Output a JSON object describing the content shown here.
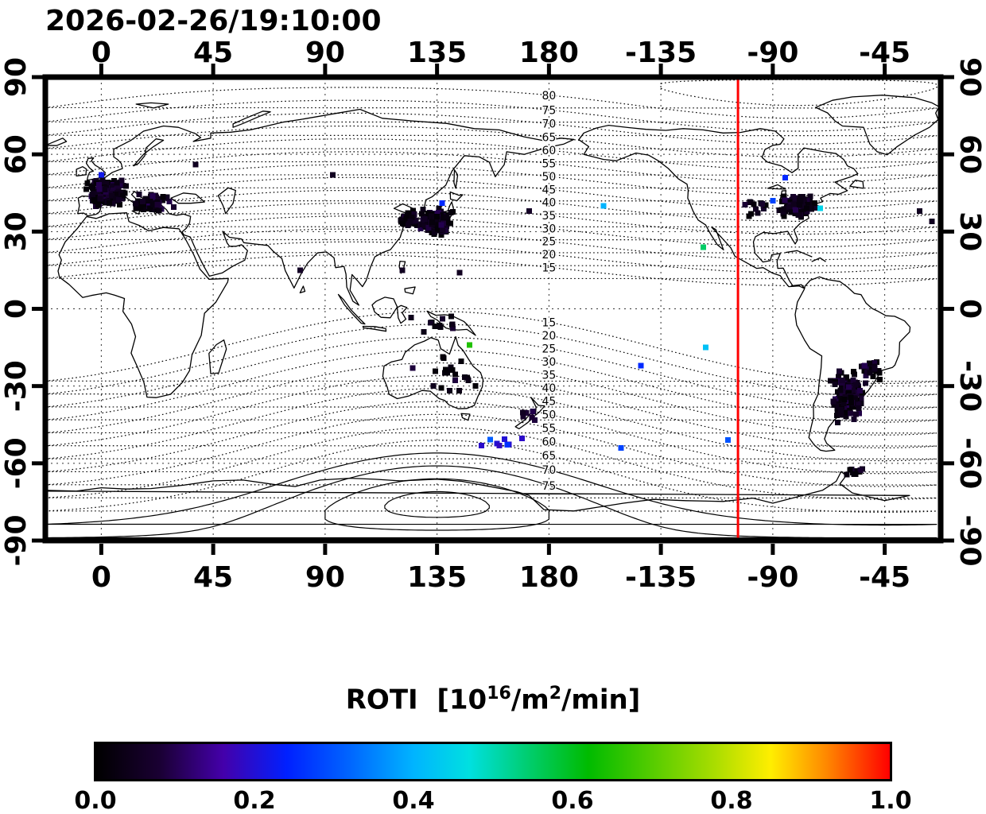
{
  "title": "2026-02-26/19:10:00",
  "axes": {
    "lon_labels": [
      "0",
      "45",
      "90",
      "135",
      "180",
      "-135",
      "-90",
      "-45"
    ],
    "lat_labels": [
      "90",
      "60",
      "30",
      "0",
      "-30",
      "-60",
      "-90"
    ]
  },
  "colorbar": {
    "title_parts": {
      "prefix": "ROTI  [10",
      "sup1": "16",
      "mid": "/m",
      "sup2": "2",
      "suffix": "/min]"
    },
    "ticks": [
      "0.0",
      "0.2",
      "0.4",
      "0.6",
      "0.8",
      "1.0"
    ]
  },
  "chart_data": {
    "type": "scatter",
    "title": "2026-02-26/19:10:00",
    "projection": {
      "lon_min": -22.5,
      "lon_max": 337.5,
      "lat_min": -90,
      "lat_max": 90
    },
    "grid_lons": [
      0,
      45,
      90,
      135,
      180,
      225,
      270,
      315
    ],
    "grid_lats": [
      60,
      30,
      0,
      -30,
      -60
    ],
    "tick_lats": [
      90,
      60,
      30,
      0,
      -30,
      -60,
      -90
    ],
    "red_line_lon": -104,
    "marker_px": 7,
    "contours": {
      "north_pole": {
        "lat": 84,
        "lon": -80
      },
      "south_pole": {
        "lat": 76,
        "lon": -45
      },
      "levels_north": [
        15,
        20,
        25,
        30,
        35,
        40,
        45,
        50,
        55,
        60,
        65,
        70,
        75,
        80,
        85
      ],
      "levels_south": [
        -15,
        -20,
        -25,
        -30,
        -35,
        -40,
        -45,
        -50,
        -55,
        -60,
        -65,
        -70,
        -75,
        -80,
        -85
      ],
      "solid_levels": [
        -70,
        -75,
        -80,
        -85
      ],
      "label_lon": 180,
      "labels_north": {
        "levels": [
          80,
          75,
          70,
          65,
          60,
          55,
          50,
          45,
          40,
          35,
          30,
          25,
          20,
          15
        ],
        "texts": [
          "80",
          "75",
          "70",
          "65",
          "60",
          "55",
          "50",
          "45",
          "40",
          "35",
          "30",
          "25",
          "20",
          "15"
        ]
      },
      "labels_south": {
        "levels": [
          -15,
          -20,
          -25,
          -30,
          -35,
          -40,
          -45,
          -50,
          -55,
          -60,
          -65,
          -70,
          -75
        ],
        "texts": [
          "15",
          "20",
          "25",
          "30",
          "35",
          "40",
          "45",
          "50",
          "55",
          "60",
          "65",
          "70",
          "75"
        ]
      }
    },
    "colormap_stops": [
      [
        0.0,
        "#000000"
      ],
      [
        0.08,
        "#1a0033"
      ],
      [
        0.16,
        "#4400aa"
      ],
      [
        0.24,
        "#0020ff"
      ],
      [
        0.32,
        "#0066ff"
      ],
      [
        0.4,
        "#00b4ff"
      ],
      [
        0.47,
        "#00e0e0"
      ],
      [
        0.55,
        "#00cc66"
      ],
      [
        0.62,
        "#00bb00"
      ],
      [
        0.7,
        "#55cc00"
      ],
      [
        0.78,
        "#aadd00"
      ],
      [
        0.85,
        "#ffee00"
      ],
      [
        0.92,
        "#ff8800"
      ],
      [
        1.0,
        "#ff0000"
      ]
    ],
    "colorbar_range": [
      0.0,
      1.0
    ],
    "clusters": [
      {
        "name": "europe-west",
        "lon": 2,
        "lat": 45,
        "slon": 7,
        "slat": 4.5,
        "n": 210,
        "rmin": 0.01,
        "rmax": 0.1
      },
      {
        "name": "europe-southeast",
        "lon": 20,
        "lat": 41,
        "slon": 7,
        "slat": 3.5,
        "n": 70,
        "rmin": 0.01,
        "rmax": 0.1
      },
      {
        "name": "east-asia-japan",
        "lon": 134,
        "lat": 34,
        "slon": 6,
        "slat": 4.5,
        "n": 170,
        "rmin": 0.01,
        "rmax": 0.1
      },
      {
        "name": "korea-china",
        "lon": 123,
        "lat": 35,
        "slon": 4,
        "slat": 3,
        "n": 40,
        "rmin": 0.01,
        "rmax": 0.1
      },
      {
        "name": "north-america-east",
        "lon": -80,
        "lat": 40,
        "slon": 6.5,
        "slat": 3.5,
        "n": 130,
        "rmin": 0.01,
        "rmax": 0.1
      },
      {
        "name": "north-america-central",
        "lon": -98,
        "lat": 38,
        "slon": 6,
        "slat": 4,
        "n": 12,
        "rmin": 0.01,
        "rmax": 0.08
      },
      {
        "name": "south-america",
        "lon": -60,
        "lat": -33,
        "slon": 6,
        "slat": 9,
        "n": 150,
        "rmin": 0.01,
        "rmax": 0.1
      },
      {
        "name": "brazil-southeast",
        "lon": -50,
        "lat": -24,
        "slon": 4,
        "slat": 3,
        "n": 30,
        "rmin": 0.01,
        "rmax": 0.1
      },
      {
        "name": "antarctic-peninsula",
        "lon": -57,
        "lat": -63,
        "slon": 4,
        "slat": 1.5,
        "n": 10,
        "rmin": 0.01,
        "rmax": 0.08
      },
      {
        "name": "australia-sparse",
        "lon": 140,
        "lat": -26,
        "slon": 12,
        "slat": 7,
        "n": 20,
        "rmin": 0.01,
        "rmax": 0.09
      },
      {
        "name": "indonesia-png",
        "lon": 135,
        "lat": -6,
        "slon": 10,
        "slat": 3,
        "n": 12,
        "rmin": 0.01,
        "rmax": 0.08
      },
      {
        "name": "new-zealand",
        "lon": 172,
        "lat": -42,
        "slon": 3,
        "slat": 3,
        "n": 6,
        "rmin": 0.02,
        "rmax": 0.1
      },
      {
        "name": "subantarctic-blue",
        "lon": 160,
        "lat": -52,
        "slon": 7,
        "slat": 2.5,
        "n": 8,
        "rmin": 0.18,
        "rmax": 0.32
      }
    ],
    "singles": [
      [
        93,
        52,
        0.05
      ],
      [
        172,
        38,
        0.06
      ],
      [
        202,
        40,
        0.4
      ],
      [
        80,
        15,
        0.06
      ],
      [
        144,
        14,
        0.05
      ],
      [
        121,
        15,
        0.05
      ],
      [
        -118,
        24,
        0.55
      ],
      [
        -71,
        39,
        0.45
      ],
      [
        -85,
        51,
        0.25
      ],
      [
        -90,
        42,
        0.28
      ],
      [
        -31,
        38,
        0.05
      ],
      [
        -26,
        34,
        0.05
      ],
      [
        -117,
        -15,
        0.42
      ],
      [
        -143,
        -22,
        0.25
      ],
      [
        -108,
        -51,
        0.3
      ],
      [
        -151,
        -54,
        0.28
      ],
      [
        148,
        -14,
        0.65
      ],
      [
        0,
        52,
        0.22
      ],
      [
        137,
        41,
        0.25
      ],
      [
        38,
        56,
        0.05
      ]
    ]
  }
}
